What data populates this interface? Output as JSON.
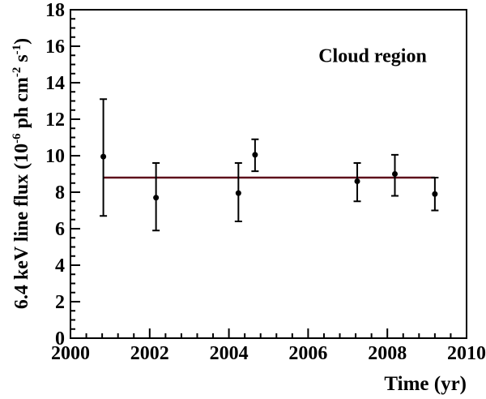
{
  "chart_data": {
    "type": "scatter",
    "annotation": {
      "text": "Cloud region"
    },
    "grid": false,
    "legend": false,
    "frame_color": "#000000",
    "x_axis": {
      "label": "Time (yr)",
      "range": [
        2000,
        2010
      ],
      "major_step": 2,
      "minor_step": 0.4,
      "tick_labels": [
        "2000",
        "2002",
        "2004",
        "2006",
        "2008",
        "2010"
      ]
    },
    "y_axis": {
      "label_plain": "6.4 keV line flux (10-6 ph cm-2 s-1)",
      "label_segments": [
        {
          "text": "6.4 keV line flux (10",
          "sup": false
        },
        {
          "text": "-6",
          "sup": true
        },
        {
          "text": " ph cm",
          "sup": false
        },
        {
          "text": "-2",
          "sup": true
        },
        {
          "text": " s",
          "sup": false
        },
        {
          "text": "-1",
          "sup": true
        },
        {
          "text": ")",
          "sup": false
        }
      ],
      "range": [
        0,
        18
      ],
      "major_step": 2,
      "minor_step": 0.5,
      "tick_labels": [
        "0",
        "2",
        "4",
        "6",
        "8",
        "10",
        "12",
        "14",
        "16",
        "18"
      ]
    },
    "series": [
      {
        "name": "6.4 keV line flux measurements",
        "marker": "filled-circle",
        "color": "#000000",
        "points": [
          {
            "x": 2000.83,
            "y": 9.95,
            "y_low": 6.7,
            "y_high": 13.1
          },
          {
            "x": 2002.16,
            "y": 7.7,
            "y_low": 5.9,
            "y_high": 9.6
          },
          {
            "x": 2004.24,
            "y": 7.95,
            "y_low": 6.4,
            "y_high": 9.6
          },
          {
            "x": 2004.66,
            "y": 10.05,
            "y_low": 9.15,
            "y_high": 10.9
          },
          {
            "x": 2007.24,
            "y": 8.6,
            "y_low": 7.5,
            "y_high": 9.6
          },
          {
            "x": 2008.19,
            "y": 9.0,
            "y_low": 7.8,
            "y_high": 10.05
          },
          {
            "x": 2009.2,
            "y": 7.9,
            "y_low": 7.0,
            "y_high": 8.8
          }
        ]
      }
    ],
    "fit_line": {
      "y": 8.8,
      "x_start": 2000.83,
      "x_end": 2009.2,
      "color": "#5e101b"
    }
  }
}
